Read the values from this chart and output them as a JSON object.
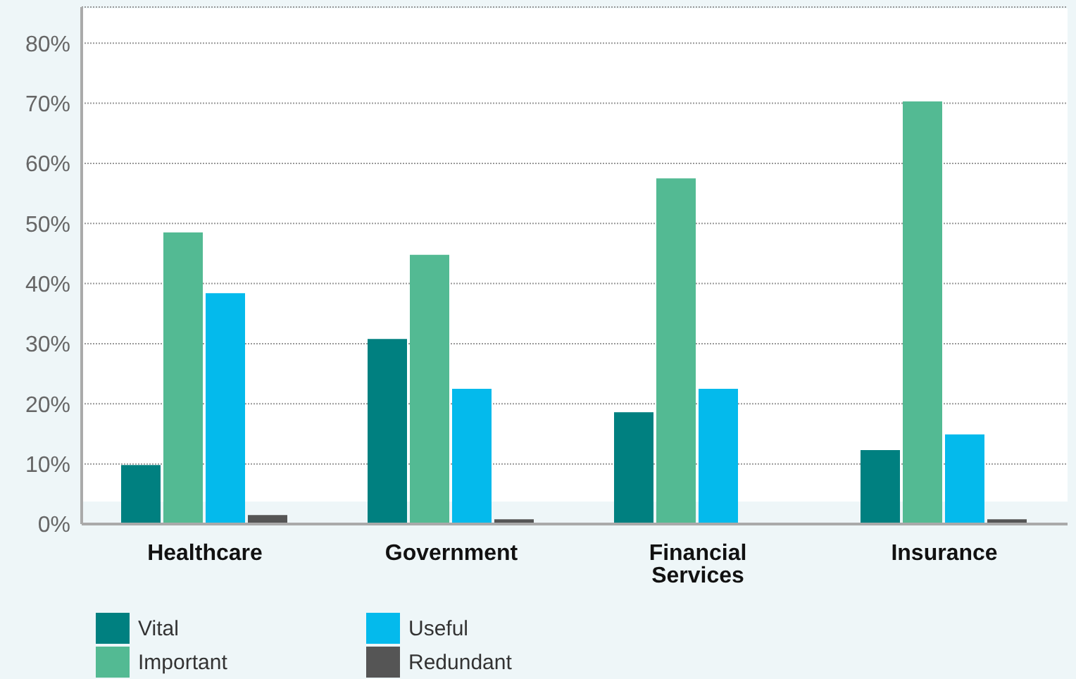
{
  "chart_data": {
    "type": "bar",
    "categories": [
      "Healthcare",
      "Government",
      "Financial Services",
      "Insurance"
    ],
    "series": [
      {
        "name": "Vital",
        "color": "#008080",
        "values": [
          9.8,
          30.8,
          18.6,
          12.3
        ]
      },
      {
        "name": "Important",
        "color": "#53ba93",
        "values": [
          48.5,
          44.8,
          57.5,
          70.3
        ]
      },
      {
        "name": "Useful",
        "color": "#04baec",
        "values": [
          38.4,
          22.5,
          22.5,
          14.9
        ]
      },
      {
        "name": "Redundant",
        "color": "#555555",
        "values": [
          1.5,
          0.8,
          0,
          0.8
        ]
      }
    ],
    "ylim": [
      0,
      86
    ],
    "yticks": [
      {
        "value": 0,
        "label": "0%"
      },
      {
        "value": 10,
        "label": "10%"
      },
      {
        "value": 20,
        "label": "20%"
      },
      {
        "value": 30,
        "label": "30%"
      },
      {
        "value": 40,
        "label": "40%"
      },
      {
        "value": 50,
        "label": "50%"
      },
      {
        "value": 60,
        "label": "60%"
      },
      {
        "value": 70,
        "label": "70%"
      },
      {
        "value": 80,
        "label": "80%"
      }
    ],
    "grid": "y",
    "legend": "bottom"
  }
}
